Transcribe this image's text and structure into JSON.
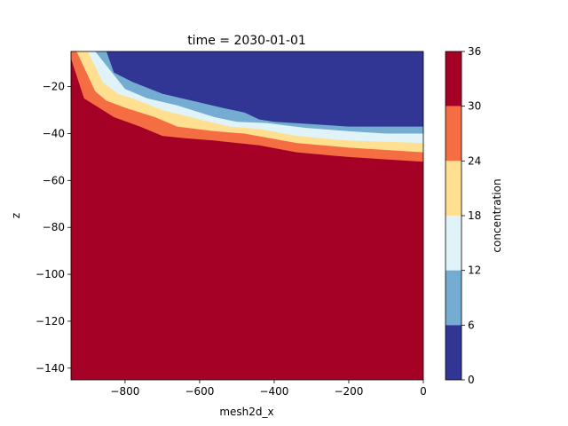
{
  "chart_data": {
    "type": "filled-contour",
    "title": "time = 2030-01-01",
    "xlabel": "mesh2d_x",
    "ylabel": "z",
    "xlim": [
      -945,
      0
    ],
    "ylim": [
      -145,
      -5
    ],
    "xticks": [
      -800,
      -600,
      -400,
      -200,
      0
    ],
    "xtick_labels": [
      "−800",
      "−600",
      "−400",
      "−200",
      "0"
    ],
    "yticks": [
      -20,
      -40,
      -60,
      -80,
      -100,
      -120,
      -140
    ],
    "ytick_labels": [
      "−20",
      "−40",
      "−60",
      "−80",
      "−100",
      "−120",
      "−140"
    ],
    "grid": false,
    "colorbar": {
      "label": "concentration",
      "ticks": [
        0,
        6,
        12,
        18,
        24,
        30,
        36
      ],
      "tick_labels": [
        "0",
        "6",
        "12",
        "18",
        "24",
        "30",
        "36"
      ]
    },
    "levels": [
      {
        "range": [
          30,
          36
        ],
        "color": "#a50026"
      },
      {
        "range": [
          24,
          30
        ],
        "color": "#f46d43"
      },
      {
        "range": [
          18,
          24
        ],
        "color": "#fee090"
      },
      {
        "range": [
          12,
          18
        ],
        "color": "#e0f3f8"
      },
      {
        "range": [
          6,
          12
        ],
        "color": "#74add1"
      },
      {
        "range": [
          0,
          6
        ],
        "color": "#313695"
      }
    ],
    "contour_boundaries": [
      {
        "between": [
          30,
          24
        ],
        "points": [
          [
            -945,
            -8
          ],
          [
            -910,
            -25
          ],
          [
            -870,
            -29
          ],
          [
            -830,
            -33
          ],
          [
            -760,
            -37
          ],
          [
            -700,
            -41
          ],
          [
            -640,
            -42
          ],
          [
            -560,
            -43
          ],
          [
            -440,
            -45
          ],
          [
            -340,
            -48
          ],
          [
            -200,
            -50
          ],
          [
            -100,
            -51
          ],
          [
            0,
            -52
          ]
        ]
      },
      {
        "between": [
          24,
          18
        ],
        "points": [
          [
            -930,
            -5
          ],
          [
            -880,
            -22
          ],
          [
            -850,
            -26
          ],
          [
            -800,
            -29
          ],
          [
            -720,
            -33
          ],
          [
            -660,
            -37
          ],
          [
            -560,
            -39
          ],
          [
            -480,
            -40
          ],
          [
            -340,
            -44
          ],
          [
            -200,
            -46
          ],
          [
            -100,
            -47
          ],
          [
            0,
            -48
          ]
        ]
      },
      {
        "between": [
          18,
          12
        ],
        "points": [
          [
            -900,
            -5
          ],
          [
            -860,
            -18
          ],
          [
            -820,
            -23
          ],
          [
            -780,
            -25
          ],
          [
            -700,
            -30
          ],
          [
            -600,
            -34
          ],
          [
            -520,
            -37
          ],
          [
            -440,
            -38
          ],
          [
            -340,
            -41
          ],
          [
            -200,
            -43
          ],
          [
            -100,
            -43.5
          ],
          [
            0,
            -44
          ]
        ]
      },
      {
        "between": [
          12,
          6
        ],
        "points": [
          [
            -880,
            -5
          ],
          [
            -840,
            -13
          ],
          [
            -800,
            -21
          ],
          [
            -740,
            -25
          ],
          [
            -660,
            -28
          ],
          [
            -560,
            -33
          ],
          [
            -500,
            -35
          ],
          [
            -420,
            -35.5
          ],
          [
            -320,
            -37.5
          ],
          [
            -200,
            -39
          ],
          [
            -100,
            -40
          ],
          [
            0,
            -40
          ]
        ]
      },
      {
        "between": [
          6,
          0
        ],
        "points": [
          [
            -850,
            -5
          ],
          [
            -830,
            -14
          ],
          [
            -780,
            -18
          ],
          [
            -700,
            -23
          ],
          [
            -620,
            -26
          ],
          [
            -540,
            -29
          ],
          [
            -480,
            -31
          ],
          [
            -440,
            -34
          ],
          [
            -400,
            -35
          ],
          [
            -300,
            -36
          ],
          [
            -200,
            -37
          ],
          [
            -100,
            -37
          ],
          [
            0,
            -37
          ]
        ]
      }
    ]
  }
}
